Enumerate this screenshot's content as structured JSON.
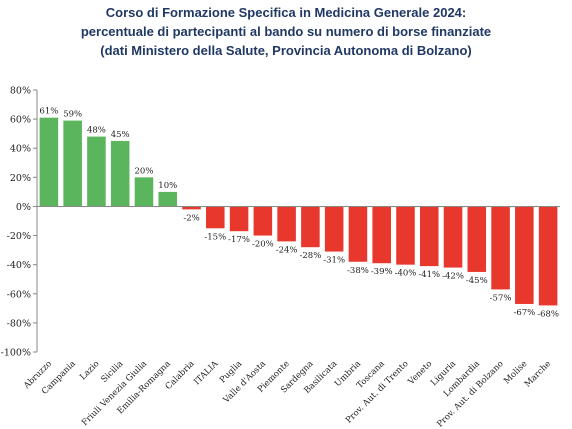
{
  "chart_data": {
    "type": "bar",
    "title_lines": [
      "Corso di Formazione Specifica in Medicina Generale 2024:",
      "percentuale di partecipanti al bando su numero di borse finanziate",
      "(dati Ministero della Salute, Provincia Autonoma di Bolzano)"
    ],
    "categories": [
      "Abruzzo",
      "Campania",
      "Lazio",
      "Sicilia",
      "Friuli Venezia Giulia",
      "Emilia-Romagna",
      "Calabria",
      "ITALIA",
      "Puglia",
      "Valle d'Aosta",
      "Piemonte",
      "Sardegna",
      "Basilicata",
      "Umbria",
      "Toscana",
      "Prov. Aut. di Trento",
      "Veneto",
      "Liguria",
      "Lombardia",
      "Prov. Aut. di Bolzano",
      "Molise",
      "Marche"
    ],
    "values": [
      61,
      59,
      48,
      45,
      20,
      10,
      -2,
      -15,
      -17,
      -20,
      -24,
      -28,
      -31,
      -38,
      -39,
      -40,
      -41,
      -42,
      -45,
      -57,
      -67,
      -68
    ],
    "data_labels": [
      "61%",
      "59%",
      "48%",
      "45%",
      "20%",
      "10%",
      "-2%",
      "-15%",
      "-17%",
      "-20%",
      "-24%",
      "-28%",
      "-31%",
      "-38%",
      "-39%",
      "-40%",
      "-41%",
      "-42%",
      "-45%",
      "-57%",
      "-67%",
      "-68%"
    ],
    "ylim": [
      -100,
      80
    ],
    "yticks": [
      80,
      60,
      40,
      20,
      0,
      -20,
      -40,
      -60,
      -80,
      -100
    ],
    "ytick_labels": [
      "80%",
      "60%",
      "40%",
      "20%",
      "0%",
      "-20%",
      "-40%",
      "-60%",
      "-80%",
      "-100%"
    ],
    "positive_color": "#5BB55C",
    "negative_color": "#E8372C",
    "grid": false,
    "legend": "none"
  }
}
